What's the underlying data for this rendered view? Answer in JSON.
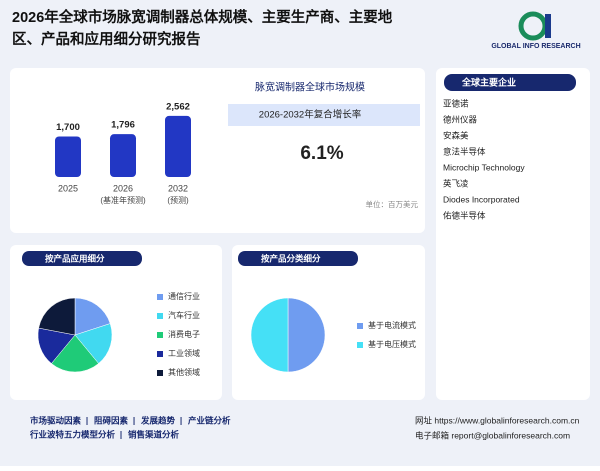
{
  "header": {
    "title_lines": [
      "2026年全球市场脉宽调制器总体规模、主要生产商、主要地",
      "区、产品和应用细分研究报告"
    ],
    "logo": "GLOBAL INFO RESEARCH"
  },
  "chart_data": [
    {
      "type": "bar",
      "title": "脉宽调制器全球市场规模",
      "categories": [
        "2025",
        "2026",
        "2032"
      ],
      "sublabels": [
        null,
        "(基准年预测)",
        "(预测)"
      ],
      "values": [
        1700,
        1796,
        2562
      ],
      "value_labels": [
        "1,700",
        "1,796",
        "2,562"
      ],
      "color": "#2237c4",
      "ylim": [
        0,
        2600
      ],
      "cagr_label": "2026-2032年复合增长率",
      "cagr": 6.1,
      "cagr_text": "6.1%",
      "unit": "单位：百万美元"
    },
    {
      "type": "pie",
      "title": "按产品应用细分",
      "categories": [
        "通信行业",
        "汽车行业",
        "消费电子",
        "工业领域",
        "其他领域"
      ],
      "values": [
        20,
        19,
        22,
        17,
        22
      ],
      "colors": [
        "#6f9cf0",
        "#41d9f0",
        "#1fcb78",
        "#1a2a9c",
        "#0d1a3a"
      ]
    },
    {
      "type": "pie",
      "title": "按产品分类细分",
      "categories": [
        "基于电流模式",
        "基于电压模式"
      ],
      "values": [
        50,
        50
      ],
      "colors": [
        "#6f9cf0",
        "#45e0f6"
      ]
    }
  ],
  "companies": {
    "title": "全球主要企业",
    "items": [
      "亚德诺",
      "德州仪器",
      "安森美",
      "意法半导体",
      "Microchip Technology",
      "英飞凌",
      "Diodes Incorporated",
      "佑德半导体"
    ]
  },
  "footer": {
    "links_1": [
      "市场驱动因素",
      "阻碍因素",
      "发展趋势",
      "产业链分析"
    ],
    "links_2": [
      "行业波特五力模型分析",
      "销售渠道分析"
    ],
    "website": "网址 https://www.globalinforesearch.com.cn",
    "email": "电子邮箱 report@globalinforesearch.com"
  }
}
